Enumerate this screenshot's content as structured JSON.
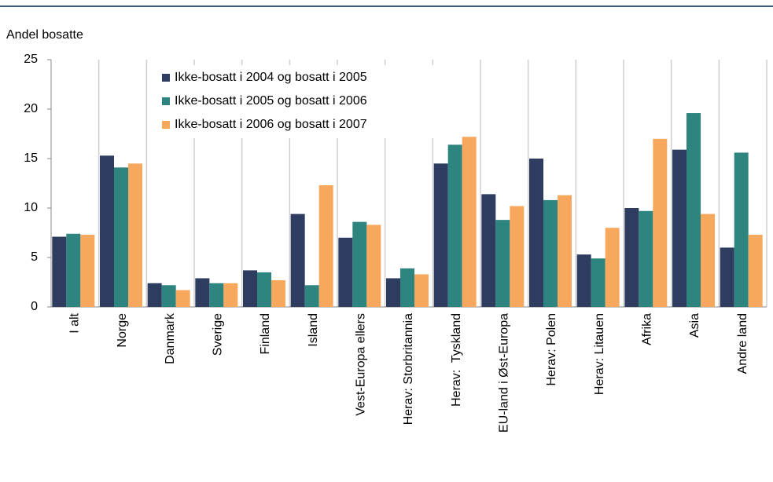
{
  "chart_data": {
    "type": "bar",
    "y_axis_label": "Andel bosatte",
    "categories": [
      "I alt",
      "Norge",
      "Danmark",
      "Sverige",
      "Finland",
      "Island",
      "Vest-Europa ellers",
      "Herav: Storbritannia",
      "Herav:  Tyskland",
      "EU-land i Øst-Europa",
      "Herav: Polen",
      "Herav: Litauen",
      "Afrika",
      "Asia",
      "Andre land"
    ],
    "series": [
      {
        "name": "Ikke-bosatt i 2004 og bosatt i 2005",
        "color": "#2e3d5f",
        "values": [
          7.1,
          15.3,
          2.4,
          2.9,
          3.7,
          9.4,
          7.0,
          2.9,
          14.5,
          11.4,
          15.0,
          5.3,
          10.0,
          15.9,
          6.0
        ]
      },
      {
        "name": "Ikke-bosatt i 2005 og bosatt i 2006",
        "color": "#2e8580",
        "values": [
          7.4,
          14.1,
          2.2,
          2.4,
          3.5,
          2.2,
          8.6,
          3.9,
          16.4,
          8.8,
          10.8,
          4.9,
          9.7,
          19.6,
          15.6
        ]
      },
      {
        "name": "Ikke-bosatt i 2006 og bosatt i 2007",
        "color": "#f7a85c",
        "values": [
          7.3,
          14.5,
          1.7,
          2.4,
          2.7,
          12.3,
          8.3,
          3.3,
          17.2,
          10.2,
          11.3,
          8.0,
          17.0,
          9.4,
          7.3
        ]
      }
    ],
    "ylim": [
      0,
      25
    ],
    "yticks": [
      0,
      5,
      10,
      15,
      20,
      25
    ],
    "legend": "top-left"
  }
}
